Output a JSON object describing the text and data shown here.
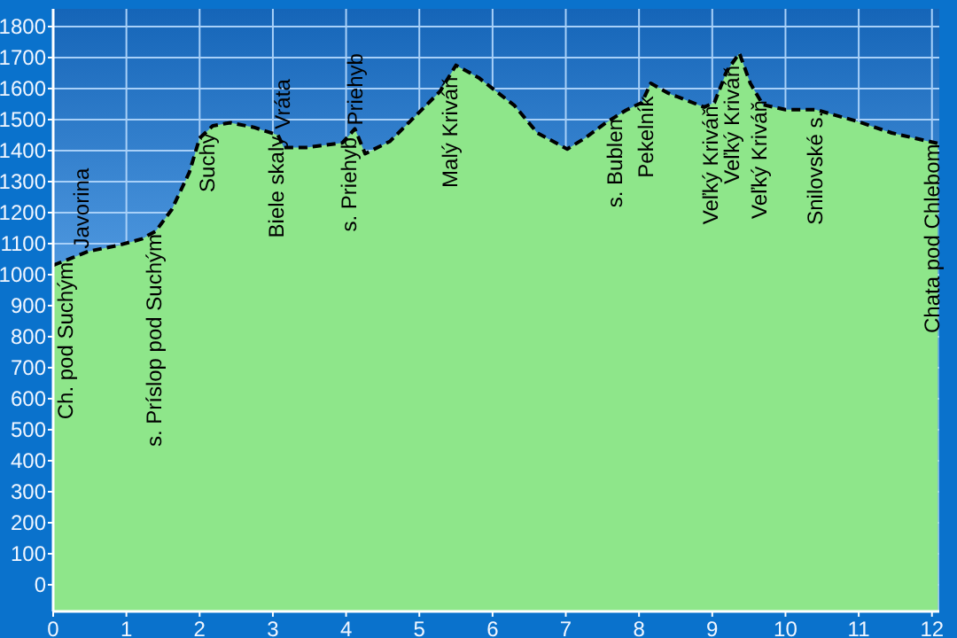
{
  "chart_data": {
    "type": "area",
    "grid": true,
    "marker": "none",
    "line_style": "dashed",
    "xlim": [
      0,
      12.1
    ],
    "ylim": [
      -86,
      1857
    ],
    "xticks": [
      0,
      1,
      2,
      3,
      4,
      5,
      6,
      7,
      8,
      9,
      10,
      11,
      12
    ],
    "yticks": [
      0,
      100,
      200,
      300,
      400,
      500,
      600,
      700,
      800,
      900,
      1000,
      1100,
      1200,
      1300,
      1400,
      1500,
      1600,
      1700,
      1800
    ],
    "x": [
      0,
      0.48,
      0.9,
      1.21,
      1.4,
      1.62,
      1.86,
      2.0,
      2.18,
      2.42,
      2.74,
      3.07,
      3.15,
      3.46,
      3.95,
      4.12,
      4.26,
      4.6,
      4.92,
      5.28,
      5.5,
      5.81,
      6.3,
      6.61,
      7.02,
      7.26,
      7.55,
      7.82,
      8.04,
      8.16,
      8.4,
      8.89,
      9.03,
      9.2,
      9.37,
      9.52,
      9.69,
      10.0,
      10.41,
      10.97,
      11.45,
      12.08
    ],
    "series": [
      {
        "color": "#8ee68a",
        "values": [
          1030,
          1075,
          1095,
          1115,
          1140,
          1210,
          1330,
          1440,
          1480,
          1490,
          1475,
          1450,
          1410,
          1410,
          1425,
          1470,
          1390,
          1430,
          1505,
          1590,
          1675,
          1635,
          1545,
          1457,
          1405,
          1440,
          1490,
          1530,
          1555,
          1617,
          1585,
          1540,
          1555,
          1657,
          1714,
          1617,
          1548,
          1532,
          1532,
          1495,
          1457,
          1423
        ]
      }
    ],
    "annotations": [
      {
        "text": "Ch. pod Suchým",
        "x": 0.17,
        "y": 1046
      },
      {
        "text": "Javorina",
        "x": 0.39,
        "y": 1067
      },
      {
        "text": "s. Príslop pod Suchým",
        "x": 1.38,
        "y": 1137
      },
      {
        "text": "Suchý",
        "x": 2.1,
        "y": 1462
      },
      {
        "text": "Biele skaly",
        "x": 3.05,
        "y": 1452
      },
      {
        "text": "Vráta",
        "x": 3.13,
        "y": 1420
      },
      {
        "text": "s. Priehyb",
        "x": 4.04,
        "y": 1449
      },
      {
        "text": "Priehyb",
        "x": 4.13,
        "y": 1464
      },
      {
        "text": "Malý Kriváň",
        "x": 5.42,
        "y": 1644
      },
      {
        "text": "s. Bublen",
        "x": 7.67,
        "y": 1508
      },
      {
        "text": "Pekelník",
        "x": 8.09,
        "y": 1581
      },
      {
        "text": "Veľký Kriváň",
        "x": 8.98,
        "y": 1550
      },
      {
        "text": "Veľký Kriváň",
        "x": 9.27,
        "y": 1680
      },
      {
        "text": "Veľký Kriváň",
        "x": 9.64,
        "y": 1568
      },
      {
        "text": "Snilovské s.",
        "x": 10.41,
        "y": 1532
      },
      {
        "text": "Chata pod Chlebom",
        "x": 12.0,
        "y": 1427
      }
    ]
  }
}
